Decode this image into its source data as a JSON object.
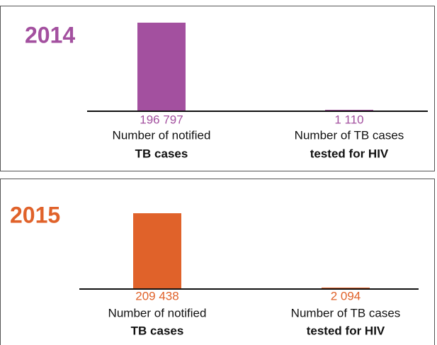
{
  "chart_data": [
    {
      "type": "bar",
      "title": "2014",
      "color": "#a3509f",
      "categories": [
        [
          "Number of notified",
          "TB cases"
        ],
        [
          "Number of TB cases",
          "tested for HIV"
        ]
      ],
      "values": [
        196797,
        1110
      ],
      "value_labels": [
        "196 797",
        "1 110"
      ]
    },
    {
      "type": "bar",
      "title": "2015",
      "color": "#e0622a",
      "categories": [
        [
          "Number of notified",
          "TB cases"
        ],
        [
          "Number of TB cases",
          "tested for HIV"
        ]
      ],
      "values": [
        209438,
        2094
      ],
      "value_labels": [
        "209 438",
        "2 094"
      ]
    }
  ]
}
